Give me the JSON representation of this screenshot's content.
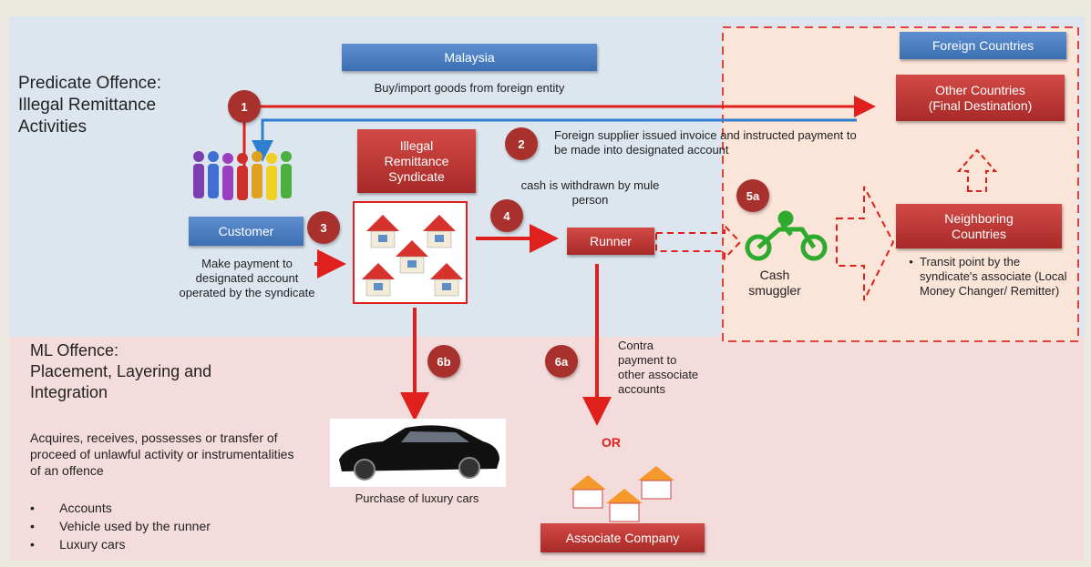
{
  "predicate_offence": "Predicate Offence: Illegal Remittance Activities",
  "malaysia": "Malaysia",
  "foreign_countries": "Foreign Countries",
  "final_destination": "Other Countries (Final Destination)",
  "neighboring_countries": "Neighboring Countries",
  "transit_note": "Transit point by the syndicate's associate (Local Money Changer/ Remitter)",
  "customer": "Customer",
  "syndicate": "Illegal Remittance Syndicate",
  "runner": "Runner",
  "cash_smuggler": "Cash smuggler",
  "associate_company": "Associate Company",
  "or": "OR",
  "steps": [
    {
      "label": "1",
      "text": "Buy/import goods from foreign entity"
    },
    {
      "label": "2",
      "text": "Foreign supplier issued invoice and instructed payment to be made into designated account"
    },
    {
      "label": "3",
      "text": "Make payment to designated account operated by the syndicate"
    },
    {
      "label": "4",
      "text": "cash is withdrawn by mule person"
    },
    {
      "label": "5a"
    },
    {
      "label": "6a",
      "text": "Contra payment to other associate accounts"
    },
    {
      "label": "6b",
      "text": "Purchase of luxury cars"
    }
  ],
  "ml_offence": {
    "label": "ML Offence:",
    "title": "Placement, Layering and Integration",
    "description": "Acquires, receives, possesses or transfer of proceed of unlawful activity or instrumentalities of an offence",
    "items": [
      "Accounts",
      "Vehicle used by the runner",
      "Luxury cars"
    ]
  }
}
